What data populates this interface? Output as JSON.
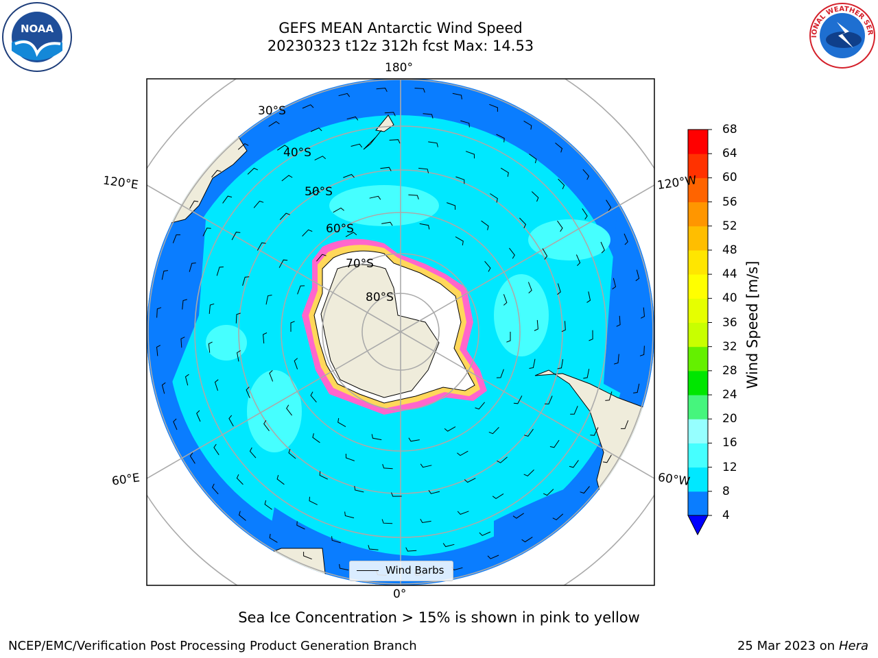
{
  "title": {
    "line1": "GEFS MEAN Antarctic Wind Speed",
    "line2": "20230323 t12z 312h fcst   Max: 14.53"
  },
  "map": {
    "projection": "south-polar-stereographic",
    "longitude_labels": [
      "180°",
      "120°E",
      "120°W",
      "60°E",
      "60°W",
      "0°"
    ],
    "latitude_labels": [
      "30°S",
      "40°S",
      "50°S",
      "60°S",
      "70°S",
      "80°S"
    ],
    "land_color": "#efecdb",
    "legend": {
      "label": "Wind Barbs"
    }
  },
  "colorbar": {
    "label": "Wind Speed [m/s]",
    "ticks": [
      "4",
      "8",
      "12",
      "16",
      "20",
      "24",
      "28",
      "32",
      "36",
      "40",
      "44",
      "48",
      "52",
      "56",
      "60",
      "64",
      "68"
    ],
    "colors": [
      "#0a7dff",
      "#00e8ff",
      "#46ffff",
      "#96ffff",
      "#46f57d",
      "#00e600",
      "#64f000",
      "#c8ff00",
      "#e6ff00",
      "#ffff00",
      "#ffe600",
      "#ffbe00",
      "#ff9600",
      "#ff6400",
      "#ff3200",
      "#ff0000"
    ],
    "extend_color": "#0000ff"
  },
  "footnote": "Sea Ice Concentration > 15% is shown in pink to yellow",
  "credit": "NCEP/EMC/Verification Post Processing Product Generation Branch",
  "datestamp": {
    "date": "25 Mar 2023 on",
    "machine": "Hera"
  },
  "logos": {
    "left": "NOAA",
    "right": "NATIONAL WEATHER SERVICE"
  }
}
